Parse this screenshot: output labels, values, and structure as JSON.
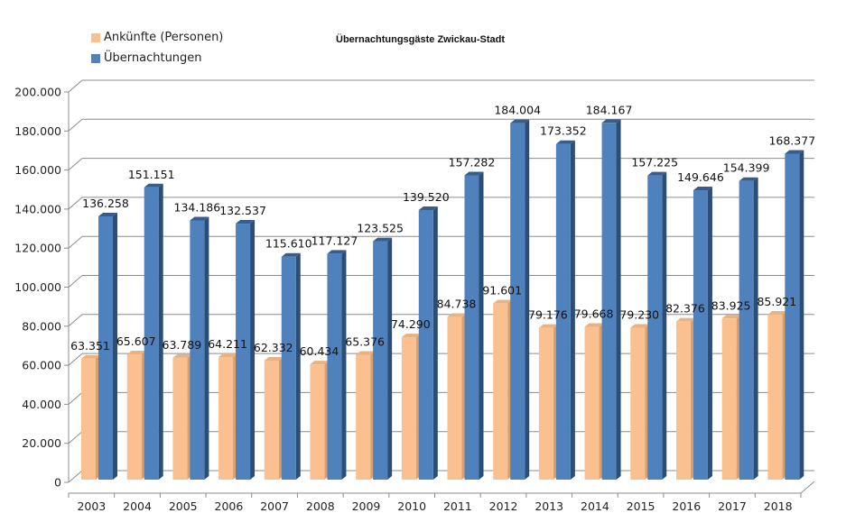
{
  "chart_data": {
    "type": "bar",
    "title": "Übernachtungsgäste Zwickau-Stadt",
    "xlabel": "",
    "ylabel": "",
    "ylim": [
      0,
      200000
    ],
    "y_ticks": [
      0,
      20000,
      40000,
      60000,
      80000,
      100000,
      120000,
      140000,
      160000,
      180000,
      200000
    ],
    "y_tick_labels": [
      "0",
      "20.000",
      "40.000",
      "60.000",
      "80.000",
      "100.000",
      "120.000",
      "140.000",
      "160.000",
      "180.000",
      "200.000"
    ],
    "grid": true,
    "legend_position": "top-left",
    "categories": [
      "2003",
      "2004",
      "2005",
      "2006",
      "2007",
      "2008",
      "2009",
      "2010",
      "2011",
      "2012",
      "2013",
      "2014",
      "2015",
      "2016",
      "2017",
      "2018"
    ],
    "series": [
      {
        "name": "Ankünfte (Personen)",
        "color": "#FAC090",
        "values": [
          63351,
          65607,
          63789,
          64211,
          62332,
          60434,
          65376,
          74290,
          84738,
          91601,
          79176,
          79668,
          79230,
          82376,
          83925,
          85921
        ],
        "labels": [
          "63.351",
          "65.607",
          "63.789",
          "64.211",
          "62.332",
          "60.434",
          "65.376",
          "74.290",
          "84.738",
          "91.601",
          "79.176",
          "79.668",
          "79.230",
          "82.376",
          "83.925",
          "85.921"
        ]
      },
      {
        "name": "Übernachtungen",
        "color": "#4F81BD",
        "values": [
          136258,
          151151,
          134186,
          132537,
          115610,
          117127,
          123525,
          139520,
          157282,
          184004,
          173352,
          184167,
          157225,
          149646,
          154399,
          168377
        ],
        "labels": [
          "136.258",
          "151.151",
          "134.186",
          "132.537",
          "115.610",
          "117.127",
          "123.525",
          "139.520",
          "157.282",
          "184.004",
          "173.352",
          "184.167",
          "157.225",
          "149.646",
          "154.399",
          "168.377"
        ]
      }
    ]
  },
  "legend": {
    "items": [
      {
        "label": "Ankünfte (Personen)",
        "color": "#FAC090"
      },
      {
        "label": "Übernachtungen",
        "color": "#4F81BD"
      }
    ]
  }
}
